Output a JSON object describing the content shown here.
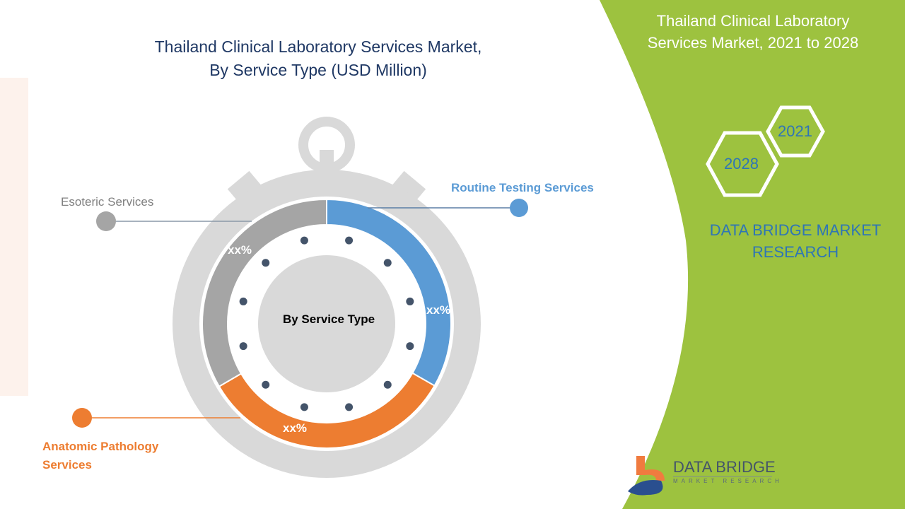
{
  "title_line1": "Thailand Clinical Laboratory Services Market,",
  "title_line2": "By Service Type (USD Million)",
  "side_panel": {
    "title_line1": "Thailand Clinical Laboratory",
    "title_line2": "Services Market, 2021 to 2028",
    "year_start": "2021",
    "year_end": "2028",
    "brand_line1": "DATA BRIDGE MARKET",
    "brand_line2": "RESEARCH",
    "panel_color": "#9dc23f"
  },
  "logo": {
    "name": "DATA BRIDGE",
    "tagline": "MARKET RESEARCH"
  },
  "chart_data": {
    "type": "pie",
    "variant": "donut (stopwatch style)",
    "center_label": "By Service Type",
    "legend_placement": "callouts",
    "slices": [
      {
        "name": "Routine Testing Services",
        "label": "xx%",
        "share": 33.3,
        "color": "#5b9bd5"
      },
      {
        "name": "Anatomic Pathology Services",
        "label": "xx%",
        "share": 33.3,
        "color": "#ed7d31"
      },
      {
        "name": "Esoteric Services",
        "label": "xx%",
        "share": 33.4,
        "color": "#a5a5a5"
      }
    ]
  }
}
